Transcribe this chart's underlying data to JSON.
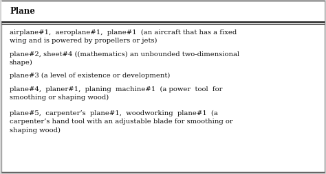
{
  "header": "Plane",
  "rows": [
    "airplane#1,  aeroplane#1,  plane#1  (an aircraft that has a fixed\nwing and is powered by propellers or jets)",
    "plane#2, sheet#4 ((mathematics) an unbounded two-dimensional\nshape)",
    "plane#3 (a level of existence or development)",
    "plane#4,  planer#1,  planing  machine#1  (a power  tool  for\nsmoothing or shaping wood)",
    "plane#5,  carpenter’s  plane#1,  woodworking  plane#1  (a\ncarpenter’s hand tool with an adjustable blade for smoothing or\nshaping wood)"
  ],
  "bg_color": "#ffffff",
  "border_color": "#222222",
  "text_color": "#111111",
  "font_size": 7.2,
  "header_font_size": 8.5,
  "outer_border_color": "#888888"
}
